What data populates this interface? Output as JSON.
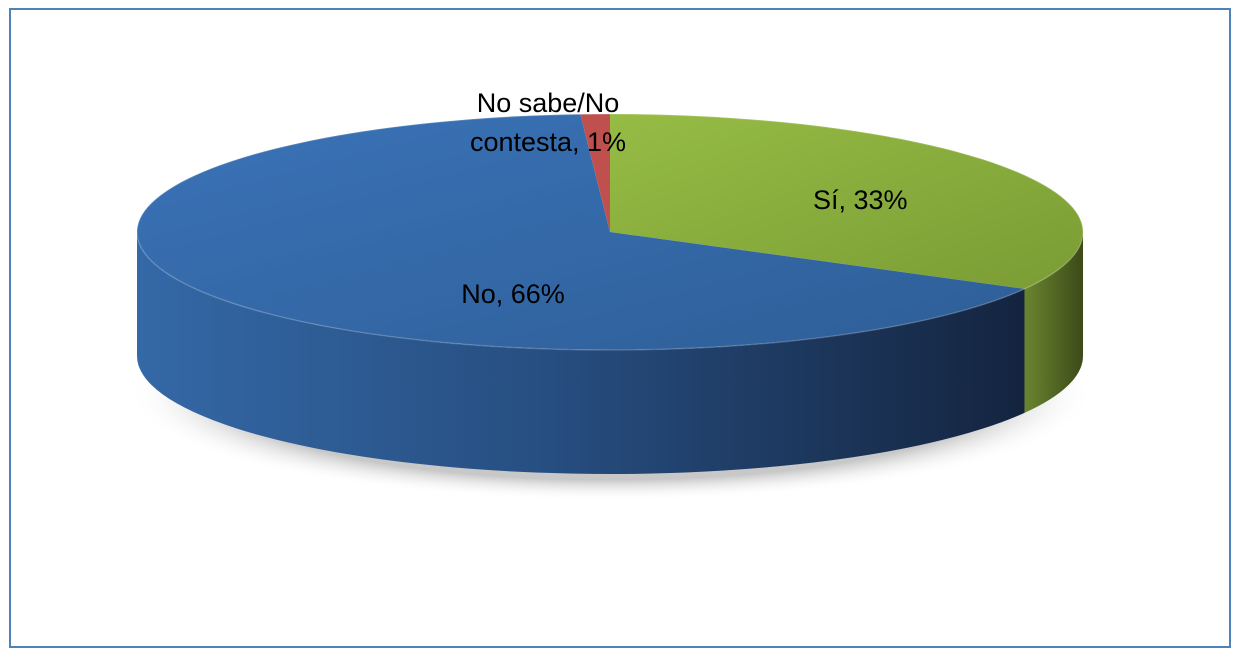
{
  "chart_data": {
    "type": "pie",
    "style": "3d",
    "slices": [
      {
        "category": "Sí",
        "value": 33,
        "label": "Sí, 33%",
        "color": "#8db33f"
      },
      {
        "category": "No",
        "value": 66,
        "label": "No, 66%",
        "color": "#3a6cae"
      },
      {
        "category": "No sabe/No contesta",
        "value": 1,
        "label_line1": "No sabe/No",
        "label_line2": "contesta, 1%",
        "color": "#c0504d"
      }
    ],
    "legend": "none",
    "colors": {
      "border": "#4f81bd"
    }
  }
}
